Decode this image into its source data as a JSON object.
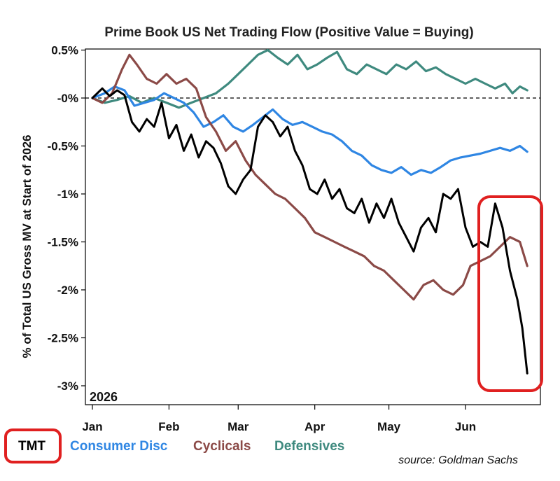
{
  "chart_data": {
    "type": "line",
    "title": "Prime Book US Net Trading Flow (Positive Value = Buying)",
    "ylabel": "% of Total US Gross MV at Start of 2026",
    "xlabel": "",
    "year_label": "2026",
    "x_tick_labels": [
      "Jan",
      "Feb",
      "Mar",
      "Apr",
      "May",
      "Jun"
    ],
    "y_ticks": [
      0.5,
      0,
      -0.5,
      -1,
      -1.5,
      -2,
      -2.5,
      -3
    ],
    "y_tick_labels": [
      "0.5%",
      "-0%",
      "-0.5%",
      "-1%",
      "-1.5%",
      "-2%",
      "-2.5%",
      "-3%"
    ],
    "ylim": [
      -3.1,
      0.5
    ],
    "xlim": [
      "2026-01-01",
      "2026-06-26"
    ],
    "zero_line": "dashed",
    "grid": false,
    "legend_position": "bottom",
    "source": "source: Goldman Sachs",
    "highlight": "rounded red box around mid-to-late June",
    "series": [
      {
        "name": "TMT",
        "color": "#000000",
        "boxed": true,
        "points": [
          [
            "2026-01-01",
            0.0
          ],
          [
            "2026-01-05",
            0.1
          ],
          [
            "2026-01-08",
            0.02
          ],
          [
            "2026-01-11",
            0.08
          ],
          [
            "2026-01-14",
            0.03
          ],
          [
            "2026-01-17",
            -0.25
          ],
          [
            "2026-01-20",
            -0.35
          ],
          [
            "2026-01-23",
            -0.22
          ],
          [
            "2026-01-26",
            -0.3
          ],
          [
            "2026-01-29",
            -0.05
          ],
          [
            "2026-02-01",
            -0.42
          ],
          [
            "2026-02-04",
            -0.28
          ],
          [
            "2026-02-07",
            -0.55
          ],
          [
            "2026-02-10",
            -0.38
          ],
          [
            "2026-02-13",
            -0.62
          ],
          [
            "2026-02-16",
            -0.45
          ],
          [
            "2026-02-19",
            -0.52
          ],
          [
            "2026-02-22",
            -0.68
          ],
          [
            "2026-02-25",
            -0.92
          ],
          [
            "2026-02-28",
            -1.0
          ],
          [
            "2026-03-03",
            -0.85
          ],
          [
            "2026-03-06",
            -0.75
          ],
          [
            "2026-03-09",
            -0.3
          ],
          [
            "2026-03-12",
            -0.18
          ],
          [
            "2026-03-15",
            -0.25
          ],
          [
            "2026-03-18",
            -0.4
          ],
          [
            "2026-03-21",
            -0.3
          ],
          [
            "2026-03-24",
            -0.55
          ],
          [
            "2026-03-27",
            -0.7
          ],
          [
            "2026-03-30",
            -0.95
          ],
          [
            "2026-04-02",
            -1.0
          ],
          [
            "2026-04-05",
            -0.85
          ],
          [
            "2026-04-08",
            -1.05
          ],
          [
            "2026-04-11",
            -0.95
          ],
          [
            "2026-04-14",
            -1.15
          ],
          [
            "2026-04-17",
            -1.2
          ],
          [
            "2026-04-20",
            -1.05
          ],
          [
            "2026-04-23",
            -1.3
          ],
          [
            "2026-04-26",
            -1.1
          ],
          [
            "2026-04-29",
            -1.25
          ],
          [
            "2026-05-02",
            -1.05
          ],
          [
            "2026-05-05",
            -1.3
          ],
          [
            "2026-05-08",
            -1.45
          ],
          [
            "2026-05-11",
            -1.6
          ],
          [
            "2026-05-14",
            -1.35
          ],
          [
            "2026-05-17",
            -1.25
          ],
          [
            "2026-05-20",
            -1.4
          ],
          [
            "2026-05-23",
            -1.0
          ],
          [
            "2026-05-26",
            -1.05
          ],
          [
            "2026-05-29",
            -0.95
          ],
          [
            "2026-06-01",
            -1.35
          ],
          [
            "2026-06-04",
            -1.55
          ],
          [
            "2026-06-07",
            -1.5
          ],
          [
            "2026-06-10",
            -1.55
          ],
          [
            "2026-06-13",
            -1.1
          ],
          [
            "2026-06-16",
            -1.35
          ],
          [
            "2026-06-19",
            -1.8
          ],
          [
            "2026-06-22",
            -2.1
          ],
          [
            "2026-06-24",
            -2.4
          ],
          [
            "2026-06-26",
            -2.87
          ]
        ]
      },
      {
        "name": "Consumer Disc",
        "color": "#2f86e3",
        "boxed": false,
        "points": [
          [
            "2026-01-01",
            0.0
          ],
          [
            "2026-01-06",
            0.05
          ],
          [
            "2026-01-10",
            0.12
          ],
          [
            "2026-01-14",
            0.08
          ],
          [
            "2026-01-18",
            -0.08
          ],
          [
            "2026-01-22",
            -0.05
          ],
          [
            "2026-01-26",
            -0.02
          ],
          [
            "2026-01-30",
            0.05
          ],
          [
            "2026-02-03",
            0.0
          ],
          [
            "2026-02-07",
            -0.05
          ],
          [
            "2026-02-11",
            -0.15
          ],
          [
            "2026-02-15",
            -0.3
          ],
          [
            "2026-02-19",
            -0.25
          ],
          [
            "2026-02-23",
            -0.18
          ],
          [
            "2026-02-27",
            -0.3
          ],
          [
            "2026-03-03",
            -0.35
          ],
          [
            "2026-03-07",
            -0.28
          ],
          [
            "2026-03-11",
            -0.2
          ],
          [
            "2026-03-15",
            -0.12
          ],
          [
            "2026-03-19",
            -0.22
          ],
          [
            "2026-03-23",
            -0.28
          ],
          [
            "2026-03-27",
            -0.25
          ],
          [
            "2026-03-31",
            -0.3
          ],
          [
            "2026-04-04",
            -0.35
          ],
          [
            "2026-04-08",
            -0.38
          ],
          [
            "2026-04-12",
            -0.45
          ],
          [
            "2026-04-16",
            -0.55
          ],
          [
            "2026-04-20",
            -0.6
          ],
          [
            "2026-04-24",
            -0.7
          ],
          [
            "2026-04-28",
            -0.75
          ],
          [
            "2026-05-02",
            -0.78
          ],
          [
            "2026-05-06",
            -0.72
          ],
          [
            "2026-05-10",
            -0.8
          ],
          [
            "2026-05-14",
            -0.75
          ],
          [
            "2026-05-18",
            -0.78
          ],
          [
            "2026-05-22",
            -0.72
          ],
          [
            "2026-05-26",
            -0.65
          ],
          [
            "2026-05-30",
            -0.62
          ],
          [
            "2026-06-03",
            -0.6
          ],
          [
            "2026-06-07",
            -0.58
          ],
          [
            "2026-06-11",
            -0.55
          ],
          [
            "2026-06-15",
            -0.52
          ],
          [
            "2026-06-19",
            -0.55
          ],
          [
            "2026-06-23",
            -0.5
          ],
          [
            "2026-06-26",
            -0.56
          ]
        ]
      },
      {
        "name": "Cyclicals",
        "color": "#8b4a47",
        "boxed": false,
        "points": [
          [
            "2026-01-01",
            0.0
          ],
          [
            "2026-01-05",
            -0.05
          ],
          [
            "2026-01-09",
            0.05
          ],
          [
            "2026-01-13",
            0.3
          ],
          [
            "2026-01-16",
            0.45
          ],
          [
            "2026-01-19",
            0.35
          ],
          [
            "2026-01-23",
            0.2
          ],
          [
            "2026-01-27",
            0.15
          ],
          [
            "2026-01-31",
            0.25
          ],
          [
            "2026-02-04",
            0.15
          ],
          [
            "2026-02-08",
            0.2
          ],
          [
            "2026-02-12",
            0.1
          ],
          [
            "2026-02-16",
            -0.2
          ],
          [
            "2026-02-20",
            -0.35
          ],
          [
            "2026-02-24",
            -0.55
          ],
          [
            "2026-02-28",
            -0.45
          ],
          [
            "2026-03-04",
            -0.65
          ],
          [
            "2026-03-08",
            -0.8
          ],
          [
            "2026-03-12",
            -0.9
          ],
          [
            "2026-03-16",
            -1.0
          ],
          [
            "2026-03-20",
            -1.05
          ],
          [
            "2026-03-24",
            -1.15
          ],
          [
            "2026-03-28",
            -1.25
          ],
          [
            "2026-04-01",
            -1.4
          ],
          [
            "2026-04-05",
            -1.45
          ],
          [
            "2026-04-09",
            -1.5
          ],
          [
            "2026-04-13",
            -1.55
          ],
          [
            "2026-04-17",
            -1.6
          ],
          [
            "2026-04-21",
            -1.65
          ],
          [
            "2026-04-25",
            -1.75
          ],
          [
            "2026-04-29",
            -1.8
          ],
          [
            "2026-05-03",
            -1.9
          ],
          [
            "2026-05-07",
            -2.0
          ],
          [
            "2026-05-11",
            -2.1
          ],
          [
            "2026-05-15",
            -1.95
          ],
          [
            "2026-05-19",
            -1.9
          ],
          [
            "2026-05-23",
            -2.0
          ],
          [
            "2026-05-27",
            -2.05
          ],
          [
            "2026-05-31",
            -1.95
          ],
          [
            "2026-06-03",
            -1.75
          ],
          [
            "2026-06-07",
            -1.7
          ],
          [
            "2026-06-11",
            -1.65
          ],
          [
            "2026-06-15",
            -1.55
          ],
          [
            "2026-06-19",
            -1.45
          ],
          [
            "2026-06-23",
            -1.5
          ],
          [
            "2026-06-26",
            -1.75
          ]
        ]
      },
      {
        "name": "Defensives",
        "color": "#3f8a7f",
        "boxed": false,
        "points": [
          [
            "2026-01-01",
            0.0
          ],
          [
            "2026-01-06",
            -0.05
          ],
          [
            "2026-01-11",
            -0.02
          ],
          [
            "2026-01-16",
            0.02
          ],
          [
            "2026-01-21",
            -0.05
          ],
          [
            "2026-01-26",
            0.0
          ],
          [
            "2026-01-31",
            -0.05
          ],
          [
            "2026-02-05",
            -0.1
          ],
          [
            "2026-02-10",
            -0.05
          ],
          [
            "2026-02-15",
            0.0
          ],
          [
            "2026-02-20",
            0.05
          ],
          [
            "2026-02-25",
            0.15
          ],
          [
            "2026-03-01",
            0.25
          ],
          [
            "2026-03-05",
            0.35
          ],
          [
            "2026-03-09",
            0.45
          ],
          [
            "2026-03-13",
            0.5
          ],
          [
            "2026-03-17",
            0.42
          ],
          [
            "2026-03-21",
            0.35
          ],
          [
            "2026-03-25",
            0.45
          ],
          [
            "2026-03-29",
            0.3
          ],
          [
            "2026-04-02",
            0.35
          ],
          [
            "2026-04-06",
            0.42
          ],
          [
            "2026-04-10",
            0.48
          ],
          [
            "2026-04-14",
            0.3
          ],
          [
            "2026-04-18",
            0.25
          ],
          [
            "2026-04-22",
            0.35
          ],
          [
            "2026-04-26",
            0.3
          ],
          [
            "2026-04-30",
            0.25
          ],
          [
            "2026-05-04",
            0.35
          ],
          [
            "2026-05-08",
            0.3
          ],
          [
            "2026-05-12",
            0.38
          ],
          [
            "2026-05-16",
            0.28
          ],
          [
            "2026-05-20",
            0.32
          ],
          [
            "2026-05-24",
            0.25
          ],
          [
            "2026-05-28",
            0.2
          ],
          [
            "2026-06-01",
            0.15
          ],
          [
            "2026-06-05",
            0.2
          ],
          [
            "2026-06-09",
            0.15
          ],
          [
            "2026-06-13",
            0.1
          ],
          [
            "2026-06-17",
            0.15
          ],
          [
            "2026-06-20",
            0.05
          ],
          [
            "2026-06-23",
            0.12
          ],
          [
            "2026-06-26",
            0.08
          ]
        ]
      }
    ]
  }
}
